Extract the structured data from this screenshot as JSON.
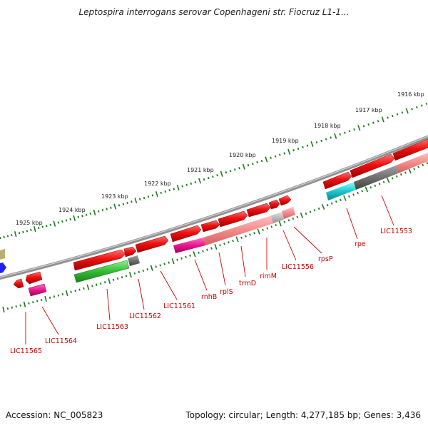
{
  "title": "Leptospira interrogans serovar Copenhageni str. Fiocruz L1-1...",
  "footer": {
    "accession": "Accession: NC_005823",
    "info": "Topology: circular; Length: 4,277,185 bp; Genes: 3,436"
  },
  "scale_ticks": [
    "1916 kbp",
    "1917 kbp",
    "1918 kbp",
    "1919 kbp",
    "1920 kbp",
    "1921 kbp",
    "1922 kbp",
    "1923 kbp",
    "1924 kbp",
    "1925 kbp"
  ],
  "gene_labels": [
    "LIC11565",
    "LIC11564",
    "LIC11563",
    "LIC11562",
    "LIC11561",
    "rnhB",
    "rplS",
    "trmD",
    "rimM",
    "LIC11556",
    "rpsP",
    "rpe",
    "LIC11553"
  ],
  "colors": {
    "gene": "#ee1111",
    "gene_light": "#f48a8a",
    "cog_gray": "#707070",
    "cog_magenta": "#e8178c",
    "cog_green": "#33bb33",
    "cog_cyan": "#1cc8cc",
    "cog_light_gray": "#bbbbbb",
    "backbone": "#7a7a7a",
    "scale_dash": "#1e7a1e",
    "label": "#cc0000",
    "partial_blue": "#2020ff",
    "partial_olive": "#b8b070"
  }
}
